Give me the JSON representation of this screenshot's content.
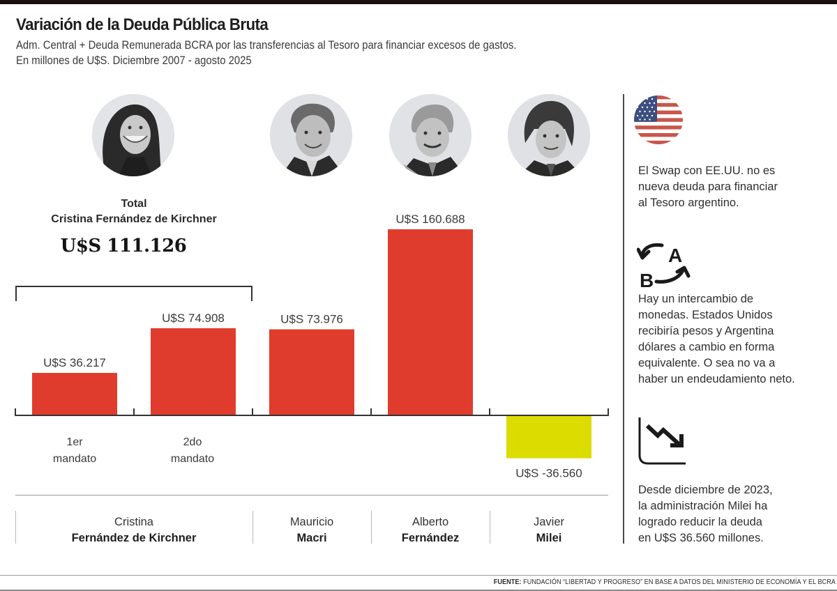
{
  "header": {
    "title": "Variación de la Deuda Pública Bruta",
    "subtitle_line1": "Adm. Central + Deuda Remunerada BCRA por las transferencias al Tesoro para financiar excesos de gastos.",
    "subtitle_line2": "En millones de U$S. Diciembre 2007 - agosto 2025"
  },
  "total": {
    "label_line1": "Total",
    "label_line2": "Cristina Fernández de Kirchner",
    "value": "U$S 111.126"
  },
  "chart_data": {
    "type": "bar",
    "title": "Variación de la Deuda Pública Bruta",
    "xlabel": "",
    "ylabel": "Millones de U$S",
    "ylim": [
      -36.56,
      160.688
    ],
    "grid": false,
    "unit_note": "values in thousands of millions (dot = thousands separator)",
    "categories": [
      "Cristina Fernández de Kirchner - 1er mandato",
      "Cristina Fernández de Kirchner - 2do mandato",
      "Mauricio Macri",
      "Alberto Fernández",
      "Javier Milei"
    ],
    "values": [
      36217,
      74908,
      73976,
      160688,
      -36560
    ],
    "labels": [
      "U$S 36.217",
      "U$S 74.908",
      "U$S 73.976",
      "U$S 160.688",
      "U$S -36.560"
    ],
    "colors": [
      "#e03c2d",
      "#e03c2d",
      "#e03c2d",
      "#e03c2d",
      "#dcdc00"
    ],
    "mandato_labels": [
      {
        "line1": "1er",
        "line2": "mandato"
      },
      {
        "line1": "2do",
        "line2": "mandato"
      }
    ]
  },
  "presidents": [
    {
      "first": "Cristina",
      "last": "Fernández de Kirchner",
      "portrait": "cristina-fernandez-portrait"
    },
    {
      "first": "Mauricio",
      "last": "Macri",
      "portrait": "mauricio-macri-portrait"
    },
    {
      "first": "Alberto",
      "last": "Fernández",
      "portrait": "alberto-fernandez-portrait"
    },
    {
      "first": "Javier",
      "last": "Milei",
      "portrait": "javier-milei-portrait"
    }
  ],
  "sidebar": {
    "swap_note": [
      "El Swap con EE.UU. no es",
      "nueva deuda para financiar",
      "al Tesoro argentino."
    ],
    "exchange_note": [
      "Hay un intercambio de",
      "monedas. Estados Unidos",
      "recibiría pesos y Argentina",
      "dólares a cambio en forma",
      "equivalente. O sea no va a",
      "haber un endeudamiento neto."
    ],
    "exchange_icon_letters": {
      "a": "A",
      "b": "B"
    },
    "reduction_note": [
      "Desde diciembre de 2023,",
      "la administración Milei ha",
      "logrado reducir la deuda",
      "en U$S 36.560 millones."
    ]
  },
  "footer": {
    "source_label": "FUENTE:",
    "source_text": " FUNDACIÓN “LIBERTAD Y PROGRESO” EN BASE A DATOS DEL MINISTERIO DE ECONOMÍA Y EL BCRA"
  },
  "colors": {
    "bar_positive": "#e03c2d",
    "bar_negative": "#dcdc00",
    "flag_red": "#c9564a",
    "flag_blue": "#3d4f80"
  }
}
